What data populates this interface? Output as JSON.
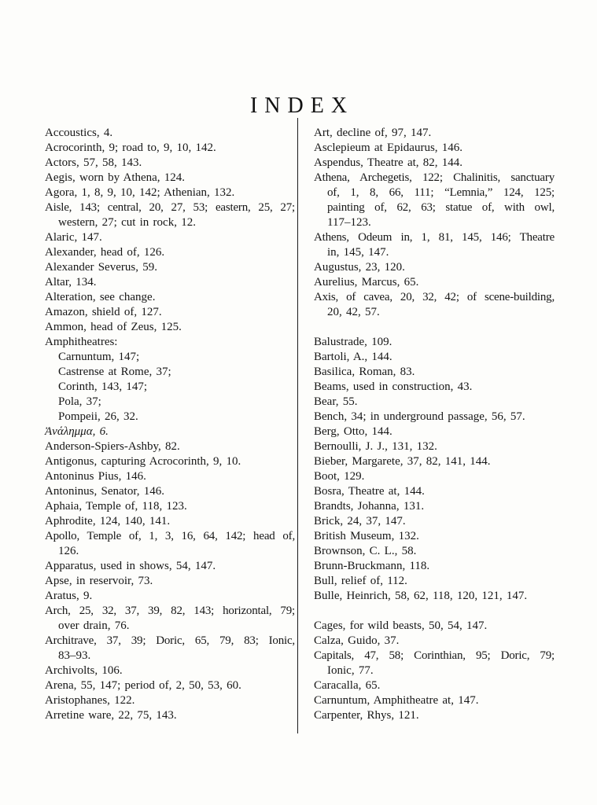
{
  "page": {
    "title": "INDEX"
  },
  "columns": {
    "left": {
      "lines": [
        {
          "type": "e",
          "text": "Accoustics, 4."
        },
        {
          "type": "e",
          "text": "Acrocorinth, 9;  road to,  9, 10, 142."
        },
        {
          "type": "e",
          "text": "Actors, 57, 58, 143."
        },
        {
          "type": "e",
          "text": "Aegis, worn by Athena, 124."
        },
        {
          "type": "e",
          "text": "Agora, 1, 8, 9, 10, 142;  Athenian, 132."
        },
        {
          "type": "e",
          "j": true,
          "text": "Aisle, 143; central, 20, 27, 53; eastern, 25, 27;"
        },
        {
          "type": "c",
          "text": "western, 27;  cut in rock, 12."
        },
        {
          "type": "e",
          "text": "Alaric, 147."
        },
        {
          "type": "e",
          "text": "Alexander, head of, 126."
        },
        {
          "type": "e",
          "text": "Alexander Severus, 59."
        },
        {
          "type": "e",
          "text": "Altar, 134."
        },
        {
          "type": "e",
          "text": "Alteration, see change."
        },
        {
          "type": "e",
          "text": "Amazon, shield of, 127."
        },
        {
          "type": "e",
          "text": "Ammon, head of Zeus, 125."
        },
        {
          "type": "e",
          "text": "Amphitheatres:"
        },
        {
          "type": "s",
          "text": "Carnuntum, 147;"
        },
        {
          "type": "s",
          "text": "Castrense at Rome, 37;"
        },
        {
          "type": "s",
          "text": "Corinth, 143, 147;"
        },
        {
          "type": "s",
          "text": "Pola, 37;"
        },
        {
          "type": "s",
          "text": "Pompeii, 26, 32."
        },
        {
          "type": "e",
          "italic": true,
          "text": "Ἀνάλημμα, 6."
        },
        {
          "type": "e",
          "text": "Anderson-Spiers-Ashby, 82."
        },
        {
          "type": "e",
          "text": "Antigonus, capturing Acrocorinth, 9, 10."
        },
        {
          "type": "e",
          "text": "Antoninus Pius, 146."
        },
        {
          "type": "e",
          "text": "Antoninus, Senator, 146."
        },
        {
          "type": "e",
          "text": "Aphaia, Temple of, 118, 123."
        },
        {
          "type": "e",
          "text": "Aphrodite, 124, 140, 141."
        },
        {
          "type": "e",
          "j": true,
          "text": "Apollo, Temple of, 1, 3, 16, 64, 142; head of,"
        },
        {
          "type": "c",
          "text": "126."
        },
        {
          "type": "e",
          "text": "Apparatus, used in shows, 54, 147."
        },
        {
          "type": "e",
          "text": "Apse, in reservoir, 73."
        },
        {
          "type": "e",
          "text": "Aratus, 9."
        },
        {
          "type": "e",
          "j": true,
          "text": "Arch, 25, 32, 37, 39, 82, 143; horizontal, 79;"
        },
        {
          "type": "c",
          "text": "over drain, 76."
        },
        {
          "type": "e",
          "j": true,
          "text": "Architrave, 37, 39; Doric, 65, 79, 83; Ionic,"
        },
        {
          "type": "c",
          "text": "83–93."
        },
        {
          "type": "e",
          "text": "Archivolts, 106."
        },
        {
          "type": "e",
          "text": "Arena, 55, 147;  period of, 2, 50, 53, 60."
        },
        {
          "type": "e",
          "text": "Aristophanes, 122."
        },
        {
          "type": "e",
          "text": "Arretine ware, 22, 75, 143."
        }
      ]
    },
    "right": {
      "lines": [
        {
          "type": "e",
          "text": "Art, decline of, 97, 147."
        },
        {
          "type": "e",
          "text": "Asclepieum at Epidaurus, 146."
        },
        {
          "type": "e",
          "text": "Aspendus, Theatre at, 82, 144."
        },
        {
          "type": "e",
          "j": true,
          "text": "Athena, Archegetis, 122; Chalinitis, sanctuary"
        },
        {
          "type": "c",
          "j": true,
          "text": "of, 1, 8, 66, 111; “Lemnia,” 124, 125;"
        },
        {
          "type": "c",
          "j": true,
          "text": "painting of, 62, 63; statue of, with owl,"
        },
        {
          "type": "c",
          "text": "117–123."
        },
        {
          "type": "e",
          "j": true,
          "text": "Athens, Odeum in, 1, 81, 145, 146; Theatre"
        },
        {
          "type": "c",
          "text": "in, 145, 147."
        },
        {
          "type": "e",
          "text": "Augustus, 23, 120."
        },
        {
          "type": "e",
          "text": "Aurelius, Marcus, 65."
        },
        {
          "type": "e",
          "j": true,
          "text": "Axis, of cavea, 20, 32, 42; of scene-building,"
        },
        {
          "type": "c",
          "text": "20, 42, 57."
        },
        {
          "type": "g",
          "text": ""
        },
        {
          "type": "e",
          "text": "Balustrade, 109."
        },
        {
          "type": "e",
          "text": "Bartoli, A., 144."
        },
        {
          "type": "e",
          "text": "Basilica, Roman, 83."
        },
        {
          "type": "e",
          "text": "Beams, used in construction, 43."
        },
        {
          "type": "e",
          "text": "Bear, 55."
        },
        {
          "type": "e",
          "text": "Bench, 34;  in underground passage, 56, 57."
        },
        {
          "type": "e",
          "text": "Berg, Otto, 144."
        },
        {
          "type": "e",
          "text": "Bernoulli, J. J., 131, 132."
        },
        {
          "type": "e",
          "text": "Bieber, Margarete, 37, 82, 141, 144."
        },
        {
          "type": "e",
          "text": "Boot, 129."
        },
        {
          "type": "e",
          "text": "Bosra, Theatre at, 144."
        },
        {
          "type": "e",
          "text": "Brandts, Johanna, 131."
        },
        {
          "type": "e",
          "text": "Brick, 24, 37, 147."
        },
        {
          "type": "e",
          "text": "British Museum, 132."
        },
        {
          "type": "e",
          "text": "Brownson, C. L., 58."
        },
        {
          "type": "e",
          "text": "Brunn-Bruckmann, 118."
        },
        {
          "type": "e",
          "text": "Bull, relief of, 112."
        },
        {
          "type": "e",
          "text": "Bulle, Heinrich, 58, 62, 118, 120, 121, 147."
        },
        {
          "type": "g",
          "text": ""
        },
        {
          "type": "e",
          "text": "Cages, for wild beasts, 50, 54, 147."
        },
        {
          "type": "e",
          "text": "Calza, Guido, 37."
        },
        {
          "type": "e",
          "j": true,
          "text": "Capitals, 47, 58;  Corinthian, 95;  Doric, 79;"
        },
        {
          "type": "c",
          "text": "Ionic, 77."
        },
        {
          "type": "e",
          "text": "Caracalla, 65."
        },
        {
          "type": "e",
          "text": "Carnuntum, Amphitheatre at, 147."
        },
        {
          "type": "e",
          "text": "Carpenter, Rhys, 121."
        }
      ]
    }
  }
}
